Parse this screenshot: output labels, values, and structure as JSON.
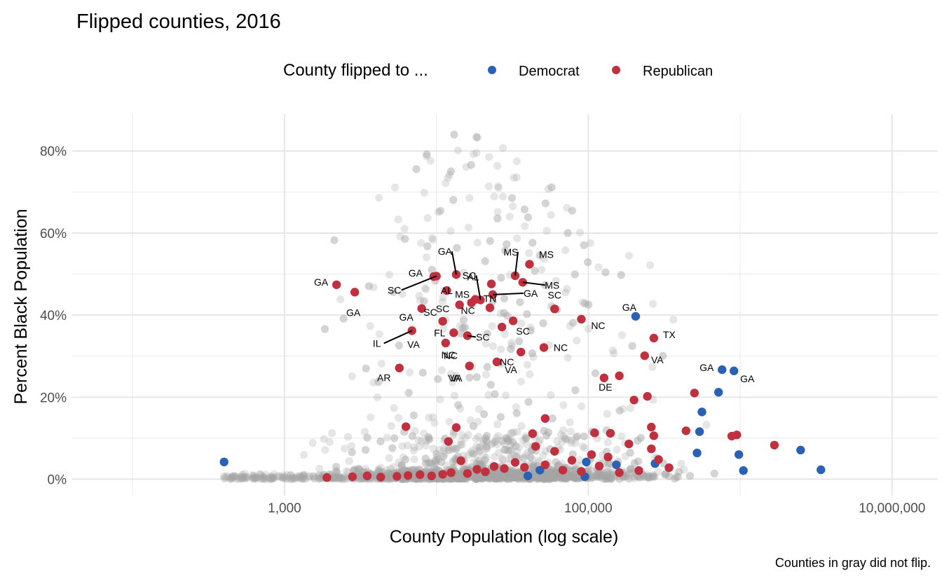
{
  "chart_data": {
    "type": "scatter",
    "title": "Flipped counties, 2016",
    "xlabel": "County Population (log scale)",
    "ylabel": "Percent Black Population",
    "caption": "Counties in gray did not flip.",
    "x_scale": "log10",
    "x_ticks": [
      {
        "value": 1000,
        "label": "1,000"
      },
      {
        "value": 100000,
        "label": "100,000"
      },
      {
        "value": 10000000,
        "label": "10,000,000"
      }
    ],
    "x_minor_ticks": [
      100,
      10000,
      1000000
    ],
    "y_ticks": [
      {
        "value": 0,
        "label": "0%"
      },
      {
        "value": 20,
        "label": "20%"
      },
      {
        "value": 40,
        "label": "40%"
      },
      {
        "value": 60,
        "label": "60%"
      },
      {
        "value": 80,
        "label": "80%"
      }
    ],
    "y_minor_ticks": [
      10,
      30,
      50,
      70
    ],
    "xlim": [
      40,
      20000000
    ],
    "ylim": [
      -4,
      89
    ],
    "grid": true,
    "legend": {
      "title": "County flipped to ...",
      "position": "top",
      "entries": [
        {
          "name": "Democrat",
          "color": "#2a61b6"
        },
        {
          "name": "Republican",
          "color": "#c0303e"
        }
      ]
    },
    "colors": {
      "democrat": "#2a61b6",
      "republican": "#c0303e",
      "not_flipped": "#a6a6a6"
    },
    "series": [
      {
        "name": "Democrat",
        "color": "#2a61b6",
        "points": [
          {
            "x": 400,
            "y": 4.2
          },
          {
            "x": 40000,
            "y": 0.8
          },
          {
            "x": 48000,
            "y": 2.2
          },
          {
            "x": 95000,
            "y": 0.6
          },
          {
            "x": 97000,
            "y": 4.2
          },
          {
            "x": 153000,
            "y": 3.5
          },
          {
            "x": 205000,
            "y": 39.7,
            "label": "GA"
          },
          {
            "x": 275000,
            "y": 3.8
          },
          {
            "x": 520000,
            "y": 6.4
          },
          {
            "x": 540000,
            "y": 11.6
          },
          {
            "x": 560000,
            "y": 16.4
          },
          {
            "x": 720000,
            "y": 21.2
          },
          {
            "x": 760000,
            "y": 26.7,
            "label": "GA"
          },
          {
            "x": 910000,
            "y": 26.4,
            "label": "GA"
          },
          {
            "x": 980000,
            "y": 6.0
          },
          {
            "x": 1050000,
            "y": 2.1
          },
          {
            "x": 2500000,
            "y": 7.1
          },
          {
            "x": 3400000,
            "y": 2.3
          }
        ]
      },
      {
        "name": "Republican",
        "color": "#c0303e",
        "points": [
          {
            "x": 2200,
            "y": 47.4,
            "label": "GA"
          },
          {
            "x": 2900,
            "y": 45.6,
            "label": "GA"
          },
          {
            "x": 9600,
            "y": 49.4,
            "label": "GA"
          },
          {
            "x": 10000,
            "y": 49.5,
            "label": "SC"
          },
          {
            "x": 13500,
            "y": 49.9,
            "label": "GA"
          },
          {
            "x": 11700,
            "y": 46.0,
            "label": "AL"
          },
          {
            "x": 23000,
            "y": 47.6,
            "label": "AL"
          },
          {
            "x": 33000,
            "y": 49.6,
            "label": "MS"
          },
          {
            "x": 41000,
            "y": 52.4,
            "label": "MS"
          },
          {
            "x": 37000,
            "y": 48.0,
            "label": "MS"
          },
          {
            "x": 19500,
            "y": 43.7,
            "label": "SC"
          },
          {
            "x": 17000,
            "y": 43.0,
            "label": "MS"
          },
          {
            "x": 18000,
            "y": 43.8
          },
          {
            "x": 23500,
            "y": 45.0,
            "label": "GA"
          },
          {
            "x": 22500,
            "y": 41.8,
            "label": "TN"
          },
          {
            "x": 14200,
            "y": 42.5,
            "label": "NC"
          },
          {
            "x": 8000,
            "y": 41.6,
            "label": "GA"
          },
          {
            "x": 60000,
            "y": 41.5,
            "label": "SC"
          },
          {
            "x": 90000,
            "y": 39.0,
            "label": "NC"
          },
          {
            "x": 11000,
            "y": 38.5,
            "label": "SC"
          },
          {
            "x": 6900,
            "y": 36.2,
            "label": "IL"
          },
          {
            "x": 13000,
            "y": 35.7,
            "label": "FL"
          },
          {
            "x": 27000,
            "y": 37.1,
            "label": "SC"
          },
          {
            "x": 32000,
            "y": 38.6
          },
          {
            "x": 16000,
            "y": 35.0,
            "label": "SC"
          },
          {
            "x": 11500,
            "y": 33.2,
            "label": "NC"
          },
          {
            "x": 36000,
            "y": 31.0,
            "label": "NC"
          },
          {
            "x": 51000,
            "y": 32.1,
            "label": "NC"
          },
          {
            "x": 16500,
            "y": 27.6,
            "label": "VA"
          },
          {
            "x": 25000,
            "y": 28.6,
            "label": "VA"
          },
          {
            "x": 5700,
            "y": 27.1,
            "label": "AR"
          },
          {
            "x": 127000,
            "y": 24.7,
            "label": "DE"
          },
          {
            "x": 160000,
            "y": 25.2
          },
          {
            "x": 235000,
            "y": 30.1,
            "label": "VA"
          },
          {
            "x": 270000,
            "y": 34.4,
            "label": "TX"
          },
          {
            "x": 200000,
            "y": 19.3
          },
          {
            "x": 245000,
            "y": 20.2
          },
          {
            "x": 500000,
            "y": 21.0
          },
          {
            "x": 52000,
            "y": 14.8
          },
          {
            "x": 6300,
            "y": 12.8
          },
          {
            "x": 12000,
            "y": 9.2
          },
          {
            "x": 13500,
            "y": 12.6
          },
          {
            "x": 43000,
            "y": 11.1
          },
          {
            "x": 45000,
            "y": 8.0
          },
          {
            "x": 110000,
            "y": 11.3
          },
          {
            "x": 140000,
            "y": 11.2
          },
          {
            "x": 260000,
            "y": 12.7
          },
          {
            "x": 270000,
            "y": 10.6
          },
          {
            "x": 440000,
            "y": 11.8
          },
          {
            "x": 880000,
            "y": 10.5
          },
          {
            "x": 950000,
            "y": 10.8
          },
          {
            "x": 1680000,
            "y": 8.3
          },
          {
            "x": 340000,
            "y": 2.8
          },
          {
            "x": 1900,
            "y": 0.4
          },
          {
            "x": 2800,
            "y": 0.6
          },
          {
            "x": 3500,
            "y": 0.8
          },
          {
            "x": 4300,
            "y": 0.5
          },
          {
            "x": 5500,
            "y": 0.7
          },
          {
            "x": 6500,
            "y": 0.9
          },
          {
            "x": 7800,
            "y": 1.1
          },
          {
            "x": 9300,
            "y": 0.8
          },
          {
            "x": 11000,
            "y": 1.2
          },
          {
            "x": 12500,
            "y": 1.6
          },
          {
            "x": 14500,
            "y": 4.5
          },
          {
            "x": 16000,
            "y": 1.4
          },
          {
            "x": 18500,
            "y": 2.4
          },
          {
            "x": 21000,
            "y": 1.8
          },
          {
            "x": 24000,
            "y": 3.1
          },
          {
            "x": 28000,
            "y": 2.6
          },
          {
            "x": 33000,
            "y": 4.1
          },
          {
            "x": 38000,
            "y": 2.9
          },
          {
            "x": 52000,
            "y": 3.5
          },
          {
            "x": 60000,
            "y": 6.8
          },
          {
            "x": 68000,
            "y": 2.2
          },
          {
            "x": 78000,
            "y": 4.6
          },
          {
            "x": 90000,
            "y": 1.9
          },
          {
            "x": 105000,
            "y": 6.0
          },
          {
            "x": 118000,
            "y": 3.2
          },
          {
            "x": 135000,
            "y": 5.4
          },
          {
            "x": 160000,
            "y": 1.6
          },
          {
            "x": 185000,
            "y": 8.6
          },
          {
            "x": 215000,
            "y": 2.1
          },
          {
            "x": 260000,
            "y": 7.4
          },
          {
            "x": 290000,
            "y": 4.8
          }
        ]
      }
    ]
  }
}
